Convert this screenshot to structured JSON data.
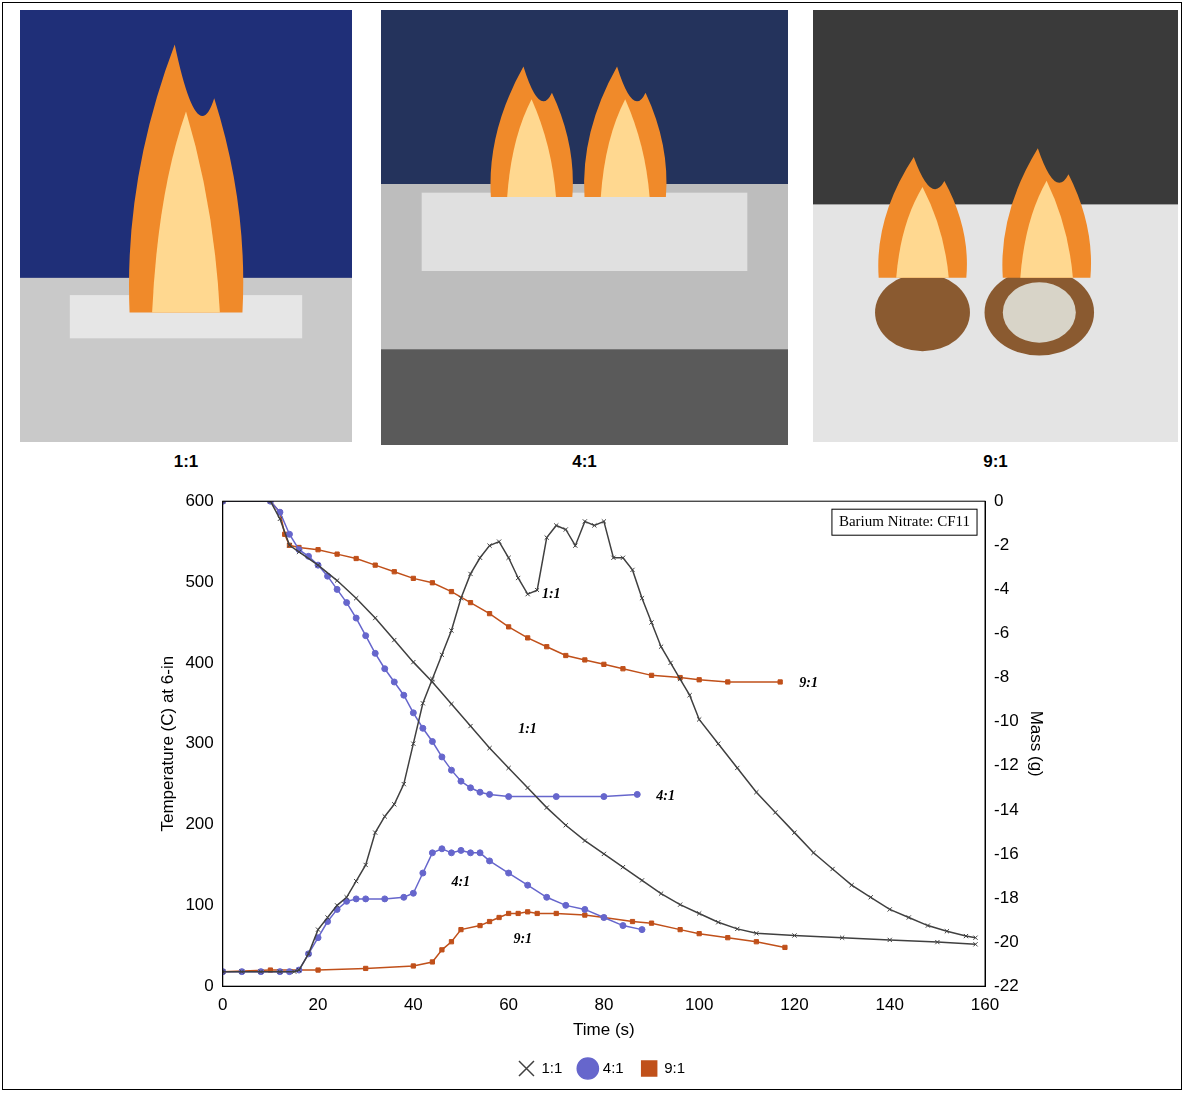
{
  "photos": {
    "captions": [
      "1:1",
      "4:1",
      "9:1"
    ]
  },
  "chart_data": {
    "type": "line",
    "inset_text": "Barium Nitrate: CF11",
    "x_label": "Time (s)",
    "y_label": "Temperature (C) at 6-in",
    "y2_label": "Mass (g)",
    "xlim": [
      0,
      160
    ],
    "xticks": [
      0,
      20,
      40,
      60,
      80,
      100,
      120,
      140,
      160
    ],
    "ylim": [
      0,
      600
    ],
    "yticks": [
      0,
      100,
      200,
      300,
      400,
      500,
      600
    ],
    "y2lim": [
      -22,
      0
    ],
    "y2ticks": [
      -22,
      -20,
      -18,
      -16,
      -14,
      -12,
      -10,
      -8,
      -6,
      -4,
      -2,
      0
    ],
    "grid": false,
    "legend": "bottom",
    "series": [
      {
        "name": "1:1",
        "color": "#404040",
        "marker": "x",
        "axis": "y",
        "x": [
          0,
          4,
          8,
          12,
          15,
          16,
          18,
          20,
          22,
          24,
          26,
          28,
          30,
          32,
          34,
          36,
          38,
          40,
          42,
          44,
          46,
          48,
          50,
          52,
          54,
          56,
          58,
          60,
          62,
          64,
          66,
          68,
          70,
          72,
          74,
          76,
          78,
          80,
          82,
          84,
          86,
          88,
          90,
          92,
          94,
          96,
          98,
          100,
          104,
          108,
          112,
          116,
          120,
          124,
          128,
          132,
          136,
          140,
          144,
          148,
          152,
          156,
          158
        ],
        "values": [
          18,
          18,
          18,
          18,
          18,
          20,
          40,
          70,
          85,
          100,
          110,
          130,
          150,
          190,
          210,
          225,
          250,
          300,
          350,
          380,
          410,
          440,
          480,
          510,
          530,
          545,
          550,
          530,
          505,
          485,
          490,
          555,
          570,
          565,
          545,
          575,
          570,
          575,
          530,
          530,
          515,
          480,
          450,
          420,
          400,
          380,
          360,
          330,
          300,
          270,
          240,
          215,
          190,
          165,
          145,
          125,
          110,
          95,
          85,
          75,
          68,
          62,
          60
        ]
      },
      {
        "name": "4:1",
        "color": "#6666cc",
        "marker": "circle",
        "axis": "y",
        "x": [
          0,
          4,
          8,
          12,
          14,
          16,
          18,
          20,
          22,
          24,
          26,
          28,
          30,
          34,
          38,
          40,
          42,
          44,
          46,
          48,
          50,
          52,
          54,
          56,
          60,
          64,
          68,
          72,
          76,
          80,
          84,
          88
        ],
        "values": [
          18,
          18,
          18,
          18,
          18,
          20,
          40,
          60,
          80,
          95,
          105,
          108,
          108,
          108,
          110,
          115,
          140,
          165,
          170,
          165,
          168,
          165,
          165,
          155,
          140,
          125,
          110,
          100,
          95,
          85,
          75,
          70
        ]
      },
      {
        "name": "9:1",
        "color": "#c0501a",
        "marker": "square",
        "axis": "y",
        "x": [
          0,
          10,
          20,
          30,
          40,
          44,
          46,
          48,
          50,
          54,
          56,
          58,
          60,
          62,
          64,
          66,
          70,
          76,
          80,
          86,
          90,
          96,
          100,
          106,
          112,
          118
        ],
        "values": [
          18,
          20,
          20,
          22,
          25,
          30,
          45,
          55,
          70,
          75,
          80,
          85,
          90,
          90,
          92,
          90,
          90,
          88,
          85,
          80,
          78,
          70,
          65,
          60,
          55,
          48
        ]
      },
      {
        "name": "1:1",
        "color": "#404040",
        "marker": "x",
        "axis": "y2",
        "x": [
          0,
          10,
          12,
          14,
          16,
          20,
          24,
          28,
          32,
          36,
          40,
          44,
          48,
          52,
          56,
          60,
          64,
          68,
          72,
          76,
          80,
          84,
          88,
          92,
          96,
          100,
          104,
          108,
          112,
          120,
          130,
          140,
          150,
          158
        ],
        "values": [
          0,
          0,
          -0.8,
          -2.0,
          -2.3,
          -2.9,
          -3.6,
          -4.4,
          -5.3,
          -6.3,
          -7.3,
          -8.2,
          -9.2,
          -10.2,
          -11.2,
          -12.1,
          -13.0,
          -13.9,
          -14.7,
          -15.4,
          -16.0,
          -16.6,
          -17.2,
          -17.8,
          -18.3,
          -18.7,
          -19.1,
          -19.4,
          -19.6,
          -19.7,
          -19.8,
          -19.9,
          -20.0,
          -20.1
        ]
      },
      {
        "name": "4:1",
        "color": "#6666cc",
        "marker": "circle",
        "axis": "y2",
        "x": [
          0,
          10,
          12,
          14,
          16,
          18,
          20,
          22,
          24,
          26,
          28,
          30,
          32,
          34,
          36,
          38,
          40,
          42,
          44,
          46,
          48,
          50,
          52,
          54,
          56,
          60,
          70,
          80,
          87
        ],
        "values": [
          0,
          0,
          -0.5,
          -1.5,
          -2.2,
          -2.5,
          -2.9,
          -3.4,
          -4.0,
          -4.6,
          -5.3,
          -6.1,
          -6.9,
          -7.6,
          -8.2,
          -8.8,
          -9.6,
          -10.3,
          -10.9,
          -11.6,
          -12.2,
          -12.7,
          -13.0,
          -13.2,
          -13.3,
          -13.4,
          -13.4,
          -13.4,
          -13.3
        ]
      },
      {
        "name": "9:1",
        "color": "#c0501a",
        "marker": "square",
        "axis": "y2",
        "x": [
          0,
          10,
          12,
          13,
          14,
          16,
          20,
          24,
          28,
          32,
          36,
          40,
          44,
          48,
          52,
          56,
          60,
          64,
          68,
          72,
          76,
          80,
          84,
          90,
          96,
          100,
          106,
          117
        ],
        "values": [
          0,
          0,
          -0.5,
          -1.5,
          -2.0,
          -2.1,
          -2.2,
          -2.4,
          -2.6,
          -2.9,
          -3.2,
          -3.5,
          -3.7,
          -4.1,
          -4.6,
          -5.1,
          -5.7,
          -6.2,
          -6.6,
          -7.0,
          -7.2,
          -7.4,
          -7.6,
          -7.9,
          -8.0,
          -8.1,
          -8.2,
          -8.2
        ]
      }
    ],
    "annotations": [
      {
        "text": "1:1",
        "x": 67,
        "y": 485
      },
      {
        "text": "1:1",
        "x": 62,
        "y": 318
      },
      {
        "text": "4:1",
        "x": 48,
        "y": 128
      },
      {
        "text": "9:1",
        "x": 61,
        "y": 58
      },
      {
        "text": "9:1",
        "x": 121,
        "y": 375
      },
      {
        "text": "4:1",
        "x": 91,
        "y": 235
      }
    ]
  }
}
